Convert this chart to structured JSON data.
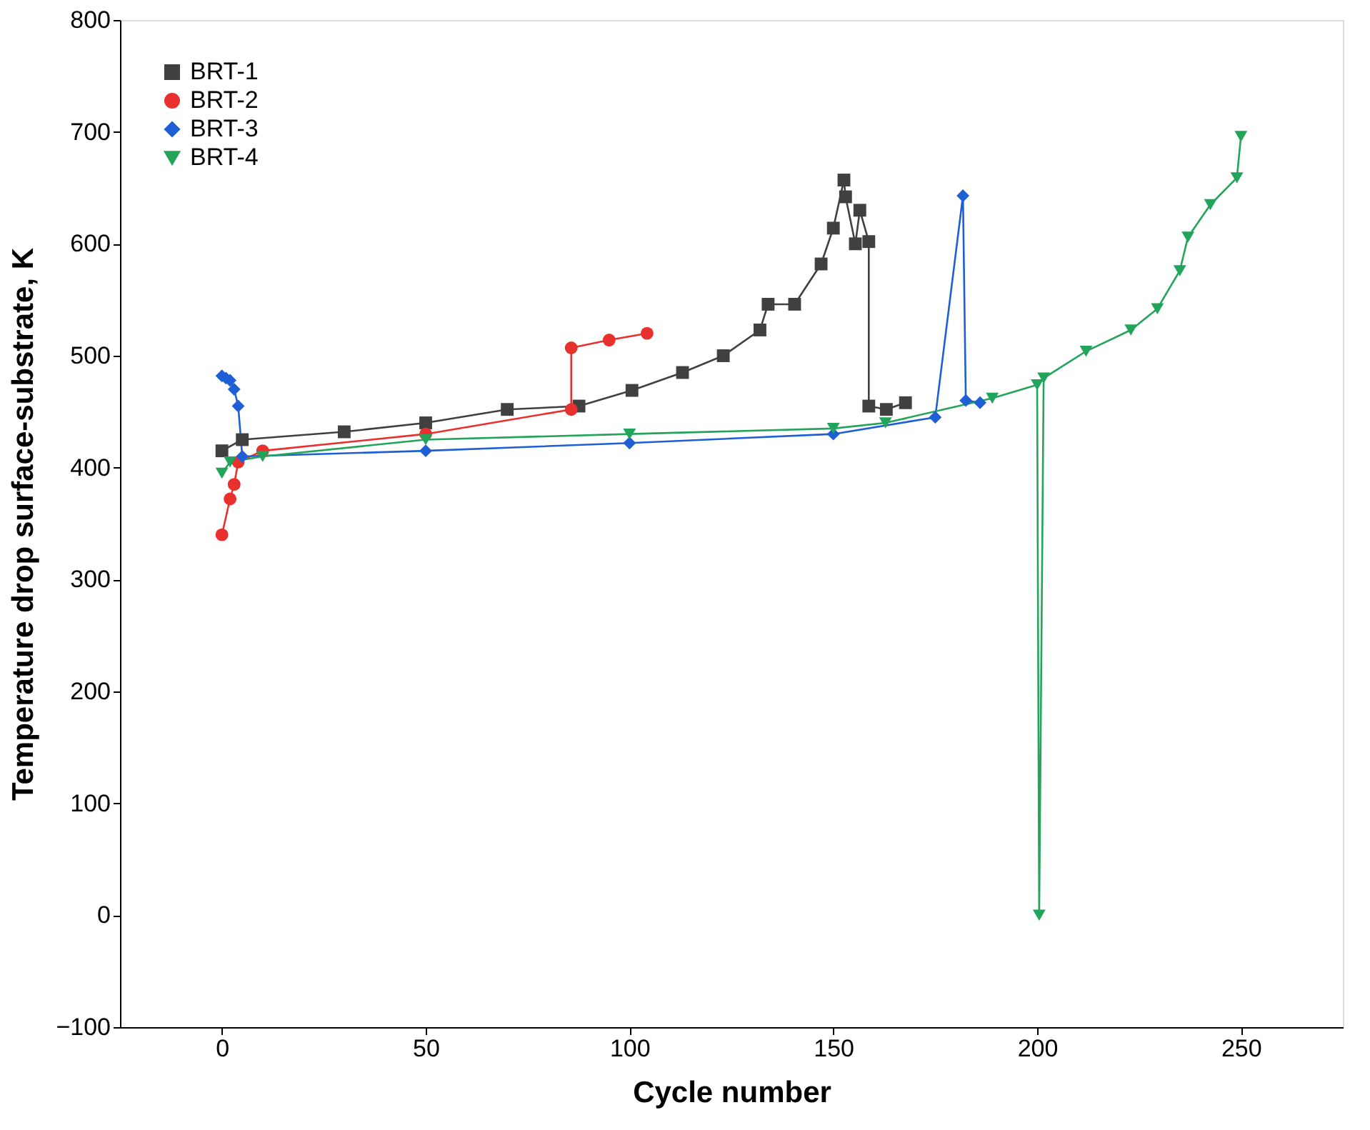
{
  "chart_data": {
    "type": "line",
    "xlabel": "Cycle number",
    "ylabel": "Temperature drop surface-substrate, K",
    "xlim": [
      -25,
      275
    ],
    "xticks": [
      0,
      50,
      100,
      150,
      200,
      250
    ],
    "ylim": [
      -100,
      800
    ],
    "yticks": [
      -100,
      0,
      100,
      200,
      300,
      400,
      500,
      600,
      700,
      800
    ],
    "grid": false,
    "legend": "top left",
    "series": [
      {
        "name": "BRT-1",
        "color": "#404040",
        "marker": "square",
        "x": [
          0,
          5,
          30,
          50,
          70,
          87.6,
          100.6,
          113,
          123,
          132,
          134,
          140.5,
          147,
          150,
          152.6,
          153,
          155.4,
          156.5,
          158.7,
          158.7,
          163,
          167.7
        ],
        "values": [
          415,
          425,
          432,
          440,
          452,
          455,
          469,
          485,
          500,
          523,
          546,
          546,
          582,
          614,
          657,
          642,
          600,
          630,
          602,
          455,
          452,
          458
        ]
      },
      {
        "name": "BRT-2",
        "color": "#e8312f",
        "marker": "circle",
        "x": [
          0,
          2,
          3,
          4,
          10,
          50,
          85.7,
          85.7,
          95,
          104.3
        ],
        "values": [
          340,
          372,
          385,
          405,
          415,
          430,
          452,
          507,
          514,
          520
        ]
      },
      {
        "name": "BRT-3",
        "color": "#1f5fd6",
        "marker": "diamond",
        "x": [
          0,
          1,
          2,
          3,
          4,
          5,
          50,
          100,
          150,
          175,
          181.8,
          182.5,
          186
        ],
        "values": [
          482,
          480,
          478,
          470,
          455,
          410,
          415,
          422,
          430,
          445,
          643,
          460,
          458
        ]
      },
      {
        "name": "BRT-4",
        "color": "#22a45a",
        "marker": "triangle",
        "x": [
          0,
          2,
          10,
          50,
          100,
          150,
          162.8,
          189,
          200,
          200.5,
          201.6,
          212,
          223,
          229.5,
          235,
          237,
          242.5,
          249,
          250
        ],
        "values": [
          395,
          405,
          410,
          425,
          430,
          435,
          440,
          462,
          474,
          0,
          480,
          504,
          523,
          542,
          576,
          606,
          635,
          659,
          696
        ]
      }
    ]
  }
}
